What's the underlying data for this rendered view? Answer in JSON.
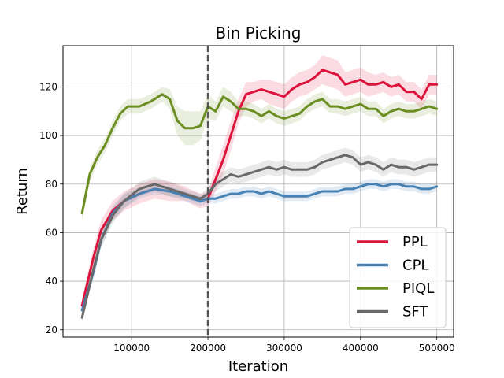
{
  "chart_data": {
    "type": "line",
    "title": "Bin Picking",
    "xlabel": "Iteration",
    "ylabel": "Return",
    "xlim": [
      10000,
      522000
    ],
    "ylim": [
      17,
      137
    ],
    "xticks": [
      100000,
      200000,
      300000,
      400000,
      500000
    ],
    "yticks": [
      20,
      40,
      60,
      80,
      100,
      120
    ],
    "grid": true,
    "legend_position": "lower-right",
    "vline_x": 200000,
    "series": [
      {
        "name": "PPL",
        "color": "#dc143c",
        "x": [
          35000,
          50000,
          60000,
          75000,
          90000,
          110000,
          130000,
          150000,
          170000,
          190000,
          200000,
          210000,
          220000,
          230000,
          240000,
          250000,
          260000,
          270000,
          280000,
          290000,
          300000,
          310000,
          320000,
          330000,
          340000,
          350000,
          360000,
          370000,
          380000,
          390000,
          400000,
          410000,
          420000,
          430000,
          440000,
          450000,
          460000,
          470000,
          480000,
          490000,
          500000
        ],
        "values": [
          30,
          50,
          61,
          69,
          73,
          76,
          78,
          77,
          76,
          73,
          74,
          82,
          90,
          100,
          110,
          117,
          118,
          119,
          118,
          117,
          116,
          119,
          121,
          122,
          124,
          127,
          126,
          125,
          121,
          122,
          123,
          121,
          121,
          122,
          120,
          121,
          118,
          118,
          115,
          121,
          121
        ],
        "band": [
          3,
          4,
          4,
          4,
          4,
          4,
          4,
          4,
          3,
          3,
          3,
          5,
          6,
          6,
          5,
          5,
          4,
          4,
          5,
          5,
          5,
          5,
          5,
          5,
          5,
          6,
          6,
          6,
          5,
          5,
          5,
          5,
          4,
          4,
          4,
          4,
          4,
          4,
          4,
          4,
          4
        ]
      },
      {
        "name": "CPL",
        "color": "#4682b4",
        "x": [
          35000,
          50000,
          60000,
          75000,
          90000,
          110000,
          130000,
          150000,
          170000,
          190000,
          200000,
          210000,
          220000,
          230000,
          240000,
          250000,
          260000,
          270000,
          280000,
          290000,
          300000,
          310000,
          320000,
          330000,
          340000,
          350000,
          360000,
          370000,
          380000,
          390000,
          400000,
          410000,
          420000,
          430000,
          440000,
          450000,
          460000,
          470000,
          480000,
          490000,
          500000
        ],
        "values": [
          28,
          44,
          57,
          68,
          73,
          76,
          78,
          77,
          75,
          73,
          74,
          74,
          75,
          76,
          76,
          77,
          77,
          76,
          77,
          76,
          75,
          75,
          75,
          75,
          76,
          77,
          77,
          77,
          78,
          78,
          79,
          80,
          80,
          79,
          80,
          80,
          79,
          79,
          78,
          78,
          79
        ],
        "band": [
          2,
          3,
          3,
          3,
          3,
          2,
          2,
          2,
          2,
          2,
          2,
          2,
          2,
          2,
          2,
          2,
          2,
          2,
          2,
          2,
          2,
          2,
          2,
          2,
          2,
          2,
          2,
          2,
          2,
          2,
          2,
          2,
          2,
          2,
          2,
          2,
          2,
          2,
          2,
          2,
          2
        ]
      },
      {
        "name": "PIQL",
        "color": "#6b8e23",
        "x": [
          35000,
          45000,
          55000,
          65000,
          75000,
          85000,
          95000,
          110000,
          125000,
          140000,
          150000,
          160000,
          170000,
          180000,
          190000,
          200000,
          210000,
          220000,
          230000,
          240000,
          250000,
          260000,
          270000,
          280000,
          290000,
          300000,
          310000,
          320000,
          330000,
          340000,
          350000,
          360000,
          370000,
          380000,
          390000,
          400000,
          410000,
          420000,
          430000,
          440000,
          450000,
          460000,
          470000,
          480000,
          490000,
          500000
        ],
        "values": [
          68,
          84,
          91,
          96,
          103,
          109,
          112,
          112,
          114,
          117,
          115,
          106,
          103,
          103,
          104,
          112,
          110,
          116,
          114,
          111,
          111,
          110,
          108,
          110,
          108,
          107,
          108,
          109,
          112,
          114,
          115,
          112,
          112,
          111,
          112,
          113,
          111,
          111,
          108,
          110,
          111,
          110,
          110,
          111,
          112,
          111
        ],
        "band": [
          3,
          3,
          3,
          3,
          3,
          3,
          3,
          3,
          3,
          3,
          4,
          6,
          7,
          7,
          6,
          5,
          4,
          4,
          4,
          3,
          3,
          3,
          3,
          3,
          3,
          3,
          3,
          3,
          3,
          3,
          3,
          3,
          3,
          3,
          3,
          3,
          3,
          3,
          3,
          3,
          3,
          3,
          3,
          3,
          3,
          3
        ]
      },
      {
        "name": "SFT",
        "color": "#696969",
        "x": [
          35000,
          50000,
          60000,
          75000,
          90000,
          110000,
          130000,
          150000,
          170000,
          190000,
          200000,
          210000,
          220000,
          230000,
          240000,
          250000,
          260000,
          270000,
          280000,
          290000,
          300000,
          310000,
          320000,
          330000,
          340000,
          350000,
          360000,
          370000,
          380000,
          390000,
          400000,
          410000,
          420000,
          430000,
          440000,
          450000,
          460000,
          470000,
          480000,
          490000,
          500000
        ],
        "values": [
          25,
          45,
          57,
          67,
          73,
          78,
          80,
          78,
          76,
          74,
          76,
          80,
          82,
          84,
          83,
          84,
          85,
          86,
          87,
          86,
          87,
          86,
          86,
          86,
          87,
          89,
          90,
          91,
          92,
          91,
          88,
          89,
          88,
          86,
          88,
          87,
          87,
          86,
          87,
          88,
          88
        ],
        "band": [
          2,
          3,
          3,
          3,
          3,
          3,
          3,
          3,
          2,
          2,
          2,
          3,
          3,
          3,
          3,
          3,
          3,
          3,
          3,
          3,
          3,
          3,
          3,
          3,
          3,
          3,
          3,
          3,
          3,
          3,
          3,
          3,
          3,
          3,
          3,
          3,
          3,
          3,
          3,
          3,
          3
        ]
      }
    ]
  }
}
